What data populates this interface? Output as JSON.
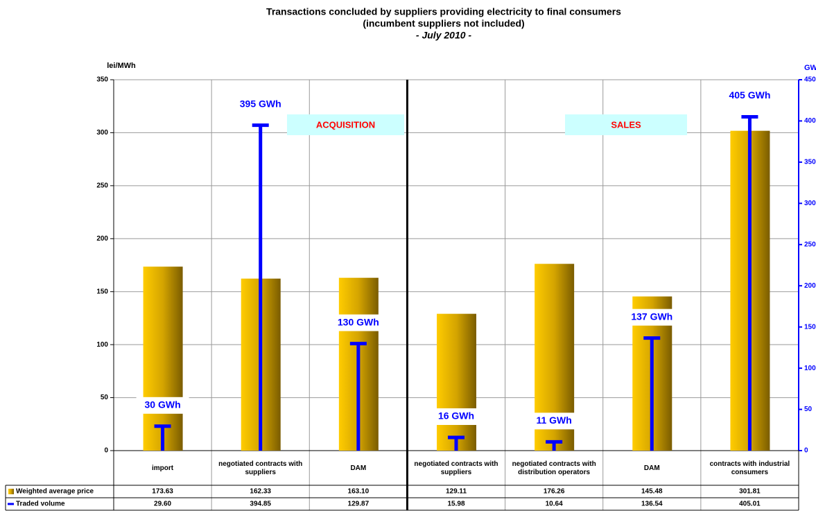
{
  "chart_data": {
    "type": "bar_line",
    "title": "Transactions concluded by suppliers providing electricity to final consumers",
    "subtitle": "(incumbent suppliers not included)",
    "date": "- July 2010 -",
    "y_label": "lei/MWh",
    "y2_label": "GWh",
    "annotations": [
      "ACQUISITION",
      "SALES"
    ],
    "categories": [
      "import",
      "negotiated contracts with suppliers",
      "DAM",
      "negotiated contracts with suppliers",
      "negotiated contracts with distribution operators",
      "DAM",
      "contracts with industrial consumers"
    ],
    "series": [
      {
        "name": "Weighted average price",
        "color": "#e6b400",
        "values": [
          173.63,
          162.33,
          163.1,
          129.11,
          176.26,
          145.48,
          301.81
        ],
        "value_labels": [
          "173.63",
          "162.33",
          "163.10",
          "129.11",
          "176.26",
          "145.48",
          "301.81"
        ]
      },
      {
        "name": "Traded volume",
        "color": "#0000ff",
        "axis": "y2",
        "values": [
          29.6,
          394.85,
          129.87,
          15.98,
          10.64,
          136.54,
          405.01
        ],
        "value_labels": [
          "29.60",
          "394.85",
          "129.87",
          "15.98",
          "10.64",
          "136.54",
          "405.01"
        ],
        "data_labels": [
          "30 GWh",
          "395 GWh",
          "130 GWh",
          "16 GWh",
          "11 GWh",
          "137 GWh",
          "405 GWh"
        ]
      }
    ],
    "ylim": [
      0,
      350
    ],
    "yticks": [
      0,
      50,
      100,
      150,
      200,
      250,
      300,
      350
    ],
    "y2lim": [
      0,
      450
    ],
    "y2ticks": [
      0,
      50,
      100,
      150,
      200,
      250,
      300,
      350,
      400,
      450
    ],
    "grid": true
  }
}
